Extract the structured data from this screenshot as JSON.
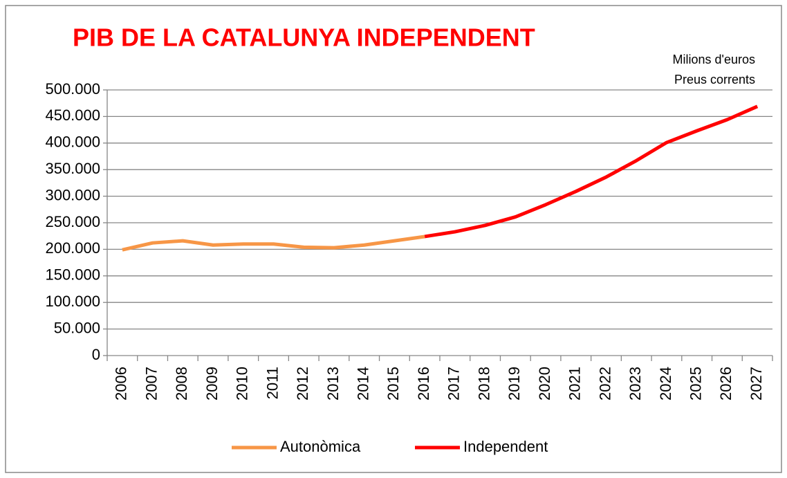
{
  "chart_data": {
    "type": "line",
    "title": "PIB DE LA CATALUNYA INDEPENDENT",
    "annotations": [
      "Milions d'euros",
      "Preus corrents"
    ],
    "categories": [
      "2006",
      "2007",
      "2008",
      "2009",
      "2010",
      "2011",
      "2012",
      "2013",
      "2014",
      "2015",
      "2016",
      "2017",
      "2018",
      "2019",
      "2020",
      "2021",
      "2022",
      "2023",
      "2024",
      "2025",
      "2026",
      "2027"
    ],
    "series": [
      {
        "name": "Autonòmica",
        "color": "#f79646",
        "values": [
          199000,
          212000,
          216000,
          208000,
          210000,
          210000,
          204000,
          203000,
          208000,
          216000,
          224000,
          null,
          null,
          null,
          null,
          null,
          null,
          null,
          null,
          null,
          null,
          null
        ]
      },
      {
        "name": "Independent",
        "color": "#ff0000",
        "values": [
          null,
          null,
          null,
          null,
          null,
          null,
          null,
          null,
          null,
          null,
          224000,
          233000,
          245000,
          261000,
          284000,
          309000,
          336000,
          367000,
          401000,
          423000,
          444000,
          469000
        ]
      }
    ],
    "ylim": [
      0,
      500000
    ],
    "yticks": [
      0,
      {
        "value": 50000,
        "label": "50.000"
      },
      {
        "value": 100000,
        "label": "100.000"
      },
      {
        "value": 150000,
        "label": "150.000"
      },
      {
        "value": 200000,
        "label": "200.000"
      },
      {
        "value": 250000,
        "label": "250.000"
      },
      {
        "value": 300000,
        "label": "300.000"
      },
      {
        "value": 350000,
        "label": "350.000"
      },
      {
        "value": 400000,
        "label": "400.000"
      },
      {
        "value": 450000,
        "label": "450.000"
      },
      {
        "value": 500000,
        "label": "500.000"
      }
    ],
    "grid": true,
    "legend": "bottom"
  }
}
